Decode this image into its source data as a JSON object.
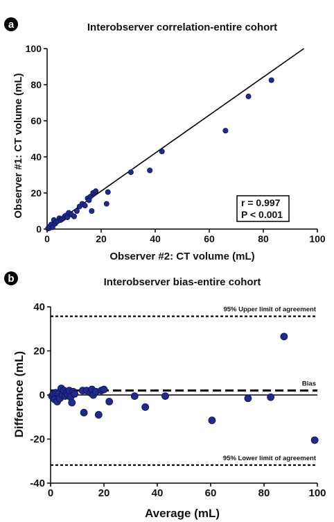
{
  "colors": {
    "point": "#1f2a8c",
    "point_stroke": "#0c1254",
    "line": "#000000"
  },
  "chart_data": [
    {
      "panel_label": "a",
      "type": "scatter",
      "title": "Interobserver correlation-entire cohort",
      "xlabel": "Observer #2: CT volume (mL)",
      "ylabel": "Observer #1: CT volume (mL)",
      "xlim": [
        0,
        100
      ],
      "ylim": [
        0,
        100
      ],
      "xticks": [
        "0",
        "20",
        "40",
        "60",
        "80",
        "100"
      ],
      "yticks": [
        "0",
        "20",
        "40",
        "60",
        "80",
        "100"
      ],
      "grid": false,
      "stats": {
        "r": "r = 0.997",
        "p": "P < 0.001"
      },
      "fit_line": {
        "x": [
          0,
          95
        ],
        "y": [
          0,
          100
        ]
      },
      "points": {
        "x": [
          0.3,
          0.8,
          1.0,
          1.5,
          2.0,
          2.5,
          3.0,
          3.5,
          4.0,
          4.5,
          5.0,
          5.5,
          6.0,
          6.5,
          7.0,
          7.5,
          8.0,
          9.0,
          10.0,
          11.0,
          12.0,
          13.0,
          14.0,
          15.0,
          15.5,
          16.0,
          16.5,
          17.0,
          18.0,
          22.0,
          22.5,
          31.0,
          38.0,
          42.5,
          66.0,
          74.5,
          83.0
        ],
        "y": [
          0.3,
          0.5,
          1.5,
          2.5,
          1.0,
          5.0,
          3.0,
          4.0,
          4.5,
          6.0,
          5.0,
          5.5,
          6.0,
          7.0,
          7.5,
          6.5,
          9.0,
          8.0,
          7.0,
          10.0,
          12.5,
          14.0,
          13.0,
          17.0,
          16.0,
          18.0,
          10.0,
          20.0,
          21.0,
          14.0,
          20.5,
          31.5,
          32.5,
          43.0,
          54.5,
          73.5,
          82.5
        ]
      }
    },
    {
      "panel_label": "b",
      "type": "scatter",
      "title": "Interobserver bias-entire cohort",
      "xlabel": "Average (mL)",
      "ylabel": "Difference (mL)",
      "xlim": [
        0,
        100
      ],
      "ylim": [
        -40,
        40
      ],
      "xticks": [
        "0",
        "20",
        "40",
        "60",
        "80",
        "100"
      ],
      "yticks": [
        "40",
        "20",
        "0",
        "-20",
        "-40"
      ],
      "grid": false,
      "reference_lines": [
        {
          "label": "95% Upper limit of agreement",
          "y": 35.7,
          "style": "dotted"
        },
        {
          "label": "Bias",
          "y": 2,
          "style": "dashed"
        },
        {
          "label": "95% Lower limit of agreement",
          "y": -31.8,
          "style": "dotted"
        }
      ],
      "points": {
        "x": [
          0.5,
          1.0,
          1.5,
          2.0,
          2.5,
          3.0,
          3.5,
          4.0,
          4.5,
          5.0,
          5.5,
          6.0,
          6.5,
          7.0,
          7.5,
          8.0,
          8.5,
          9.0,
          12.0,
          12.5,
          13.5,
          15.0,
          15.5,
          16.0,
          17.0,
          18.0,
          19.0,
          20.0,
          22.0,
          31.5,
          35.5,
          43.0,
          60.5,
          74.0,
          82.5,
          87.5,
          99.0
        ],
        "y": [
          -0.5,
          0.5,
          -2.0,
          1.0,
          -3.0,
          0.5,
          -1.5,
          3.0,
          0.0,
          2.0,
          -0.5,
          1.0,
          0.0,
          2.0,
          -1.0,
          -3.5,
          1.5,
          0.5,
          2.0,
          -8.0,
          2.0,
          1.0,
          2.5,
          0.0,
          1.5,
          -9.0,
          2.0,
          2.5,
          -3.0,
          -0.5,
          -5.5,
          -0.5,
          -11.5,
          -1.5,
          -1.0,
          26.5,
          -20.5
        ]
      }
    }
  ]
}
